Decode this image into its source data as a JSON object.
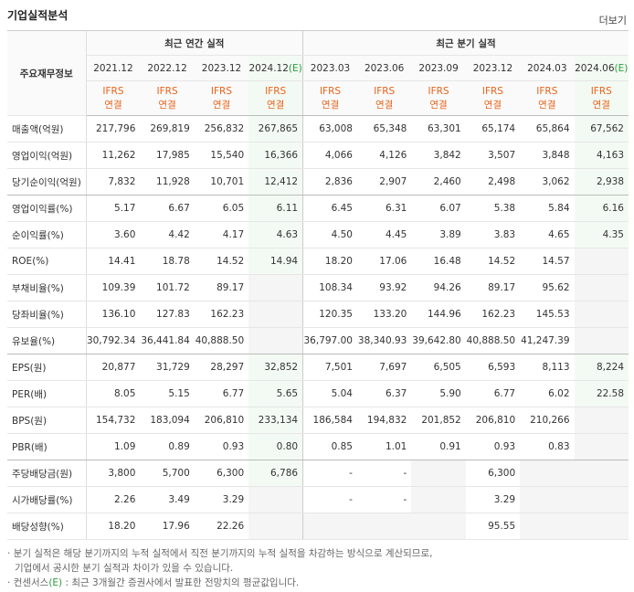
{
  "header": {
    "title": "기업실적분석",
    "more": "더보기"
  },
  "table": {
    "corner": "주요재무정보",
    "groups": [
      "최근 연간 실적",
      "최근 분기 실적"
    ],
    "periods": [
      {
        "label": "2021.12"
      },
      {
        "label": "2022.12"
      },
      {
        "label": "2023.12"
      },
      {
        "label": "2024.12",
        "mark": "(E)"
      },
      {
        "label": "2023.03"
      },
      {
        "label": "2023.06"
      },
      {
        "label": "2023.09"
      },
      {
        "label": "2023.12"
      },
      {
        "label": "2024.03"
      },
      {
        "label": "2024.06",
        "mark": "(E)"
      }
    ],
    "standards": [
      {
        "basis": "IFRS",
        "scope": "연결"
      },
      {
        "basis": "IFRS",
        "scope": "연결"
      },
      {
        "basis": "IFRS",
        "scope": "연결"
      },
      {
        "basis": "IFRS",
        "scope": "연결"
      },
      {
        "basis": "IFRS",
        "scope": "연결"
      },
      {
        "basis": "IFRS",
        "scope": "연결"
      },
      {
        "basis": "IFRS",
        "scope": "연결"
      },
      {
        "basis": "IFRS",
        "scope": "연결"
      },
      {
        "basis": "IFRS",
        "scope": "연결"
      },
      {
        "basis": "IFRS",
        "scope": "연결"
      }
    ],
    "rows": [
      {
        "name": "매출액(억원)",
        "cells": [
          "217,796",
          "269,819",
          "256,832",
          "267,865",
          "63,008",
          "65,348",
          "63,301",
          "65,174",
          "65,864",
          "67,562"
        ]
      },
      {
        "name": "영업이익(억원)",
        "cells": [
          "11,262",
          "17,985",
          "15,540",
          "16,366",
          "4,066",
          "4,126",
          "3,842",
          "3,507",
          "3,848",
          "4,163"
        ]
      },
      {
        "name": "당기순이익(억원)",
        "cells": [
          "7,832",
          "11,928",
          "10,701",
          "12,412",
          "2,836",
          "2,907",
          "2,460",
          "2,498",
          "3,062",
          "2,938"
        ]
      },
      {
        "name": "영업이익률(%)",
        "cells": [
          "5.17",
          "6.67",
          "6.05",
          "6.11",
          "6.45",
          "6.31",
          "6.07",
          "5.38",
          "5.84",
          "6.16"
        ]
      },
      {
        "name": "순이익률(%)",
        "cells": [
          "3.60",
          "4.42",
          "4.17",
          "4.63",
          "4.50",
          "4.45",
          "3.89",
          "3.83",
          "4.65",
          "4.35"
        ]
      },
      {
        "name": "ROE(%)",
        "cells": [
          "14.41",
          "18.78",
          "14.52",
          "14.94",
          "18.20",
          "17.06",
          "16.48",
          "14.52",
          "14.57",
          null
        ]
      },
      {
        "name": "부채비율(%)",
        "cells": [
          "109.39",
          "101.72",
          "89.17",
          null,
          "108.34",
          "93.92",
          "94.26",
          "89.17",
          "95.62",
          null
        ]
      },
      {
        "name": "당좌비율(%)",
        "cells": [
          "136.10",
          "127.83",
          "162.23",
          null,
          "120.35",
          "133.20",
          "144.96",
          "162.23",
          "145.53",
          null
        ]
      },
      {
        "name": "유보율(%)",
        "cells": [
          "30,792.34",
          "36,441.84",
          "40,888.50",
          null,
          "36,797.00",
          "38,340.93",
          "39,642.80",
          "40,888.50",
          "41,247.39",
          null
        ]
      },
      {
        "name": "EPS(원)",
        "cells": [
          "20,877",
          "31,729",
          "28,297",
          "32,852",
          "7,501",
          "7,697",
          "6,505",
          "6,593",
          "8,113",
          "8,224"
        ]
      },
      {
        "name": "PER(배)",
        "cells": [
          "8.05",
          "5.15",
          "6.77",
          "5.65",
          "5.04",
          "6.37",
          "5.90",
          "6.77",
          "6.02",
          "22.58"
        ]
      },
      {
        "name": "BPS(원)",
        "cells": [
          "154,732",
          "183,094",
          "206,810",
          "233,134",
          "186,584",
          "194,832",
          "201,852",
          "206,810",
          "210,266",
          null
        ]
      },
      {
        "name": "PBR(배)",
        "cells": [
          "1.09",
          "0.89",
          "0.93",
          "0.80",
          "0.85",
          "1.01",
          "0.91",
          "0.93",
          "0.83",
          null
        ]
      },
      {
        "name": "주당배당금(원)",
        "cells": [
          "3,800",
          "5,700",
          "6,300",
          "6,786",
          "-",
          "-",
          null,
          "6,300",
          null,
          null
        ]
      },
      {
        "name": "시가배당률(%)",
        "cells": [
          "2.26",
          "3.49",
          "3.29",
          null,
          "-",
          "-",
          null,
          "3.29",
          null,
          null
        ]
      },
      {
        "name": "배당성향(%)",
        "cells": [
          "18.20",
          "17.96",
          "22.26",
          null,
          null,
          null,
          null,
          "95.55",
          null,
          null
        ]
      }
    ]
  },
  "notes": [
    {
      "text": "분기 실적은 해당 분기까지의 누적 실적에서 직전 분기까지의 누적 실적을 차감하는 방식으로 계산되므로,",
      "cont": "기업에서 공시한 분기 실적과 차이가 있을 수 있습니다."
    },
    {
      "text": "컨센서스",
      "mark": "(E)",
      "rest": " : 최근 3개월간 증권사에서 발표한 전망치의 평균값입니다."
    }
  ]
}
